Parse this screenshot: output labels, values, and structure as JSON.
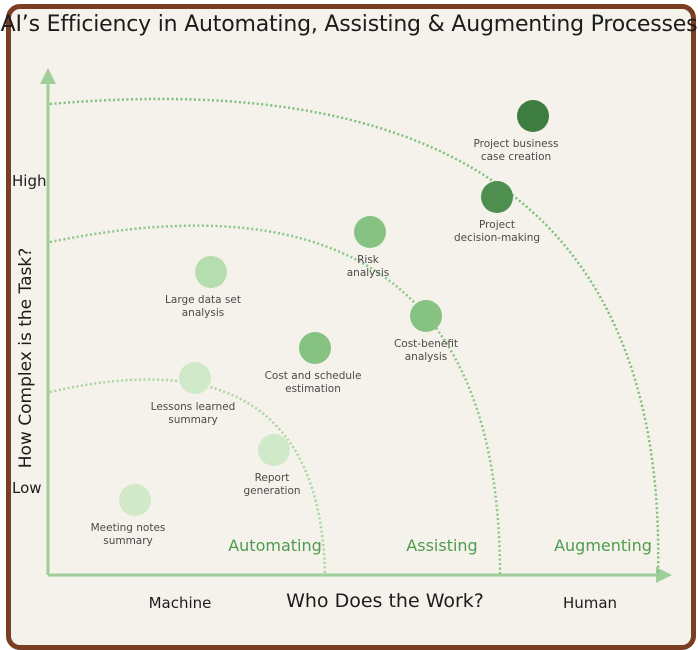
{
  "title": "AI’s Efficiency in Automating, Assisting & Augmenting Processes",
  "axes": {
    "y_label": "How Complex is the Task?",
    "y_high": "High",
    "y_low": "Low",
    "x_label": "Who Does the Work?",
    "x_left": "Machine",
    "x_right": "Human"
  },
  "zones": {
    "automating": "Automating",
    "assisting": "Assisting",
    "augmenting": "Augmenting"
  },
  "colors": {
    "frame": "#7a3e22",
    "background": "#f4f2ea",
    "axis": "#9fce9b",
    "zone_text": "#4f9c50",
    "lightest": "#cfe9c9",
    "light": "#a9d6a2",
    "medium": "#7fbf7c",
    "dark": "#4e8f4f",
    "darkest": "#3d7d40"
  },
  "points": [
    {
      "label": "Meeting notes\nsummary",
      "shade": "lightest"
    },
    {
      "label": "Report\ngeneration",
      "shade": "lightest"
    },
    {
      "label": "Lessons learned\nsummary",
      "shade": "lightest"
    },
    {
      "label": "Large data set\nanalysis",
      "shade": "light"
    },
    {
      "label": "Cost and schedule\nestimation",
      "shade": "medium"
    },
    {
      "label": "Risk\nanalysis",
      "shade": "medium"
    },
    {
      "label": "Cost-benefit\nanalysis",
      "shade": "medium"
    },
    {
      "label": "Project\ndecision-making",
      "shade": "dark"
    },
    {
      "label": "Project business\ncase creation",
      "shade": "darkest"
    }
  ]
}
